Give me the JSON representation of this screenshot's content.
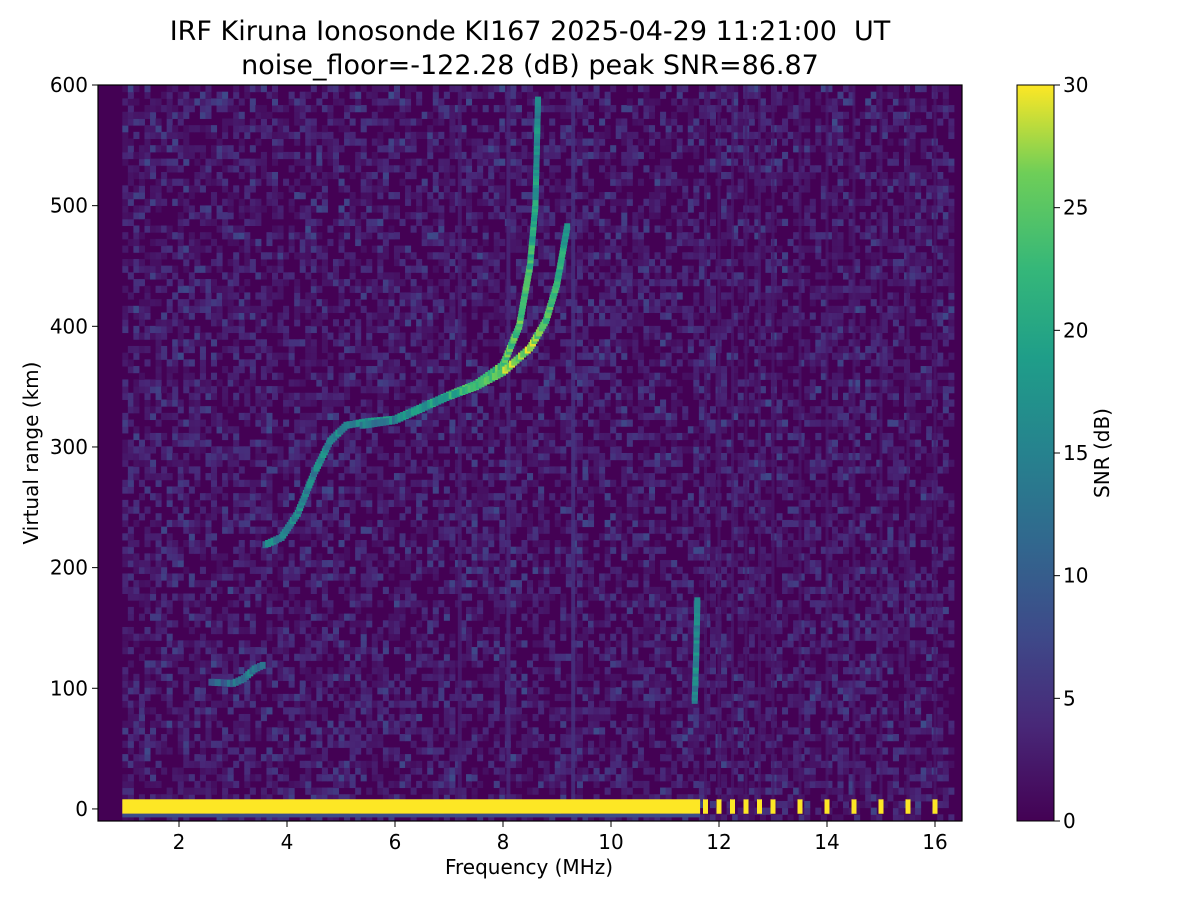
{
  "chart_data": {
    "type": "heatmap",
    "title": "IRF Kiruna Ionosonde KI167 2025-04-29 11:21:00  UT",
    "subtitle": "noise_floor=-122.28 (dB) peak SNR=86.87",
    "xlabel": "Frequency (MHz)",
    "ylabel": "Virtual range (km)",
    "xlim": [
      0.5,
      16.5
    ],
    "ylim": [
      -10,
      600
    ],
    "xticks": [
      2,
      4,
      6,
      8,
      10,
      12,
      14,
      16
    ],
    "yticks": [
      0,
      100,
      200,
      300,
      400,
      500,
      600
    ],
    "colorbar": {
      "label": "SNR (dB)",
      "range": [
        0,
        30
      ],
      "ticks": [
        0,
        5,
        10,
        15,
        20,
        25,
        30
      ],
      "colormap": "viridis"
    },
    "frequency_coverage_mhz": [
      0.95,
      16.35
    ],
    "sounding_frequencies_mhz_above_11_7": [
      11.75,
      12.0,
      12.25,
      12.5,
      12.75,
      13.0,
      13.5,
      14.0,
      14.5,
      15.0,
      15.5,
      16.0
    ],
    "ground_echo": {
      "range_km": 2,
      "snr_db": 30
    },
    "traces": [
      {
        "name_visible": false,
        "kind": "E layer",
        "points": [
          [
            2.6,
            105,
            9
          ],
          [
            3.0,
            104,
            12
          ],
          [
            3.2,
            108,
            14
          ],
          [
            3.4,
            116,
            14
          ],
          [
            3.6,
            120,
            12
          ]
        ]
      },
      {
        "name_visible": false,
        "kind": "F layer",
        "points": [
          [
            3.6,
            219,
            14
          ],
          [
            3.9,
            225,
            16
          ],
          [
            4.2,
            245,
            16
          ],
          [
            4.5,
            278,
            15
          ],
          [
            4.8,
            305,
            16
          ],
          [
            5.1,
            318,
            15
          ],
          [
            5.5,
            321,
            18
          ],
          [
            6.0,
            323,
            17
          ],
          [
            6.5,
            333,
            18
          ],
          [
            7.0,
            343,
            21
          ],
          [
            7.5,
            352,
            23
          ],
          [
            8.0,
            368,
            24
          ],
          [
            8.3,
            400,
            24
          ],
          [
            8.5,
            450,
            22
          ],
          [
            8.6,
            500,
            19
          ],
          [
            8.65,
            590,
            15
          ]
        ]
      },
      {
        "name_visible": false,
        "kind": "F layer",
        "points": [
          [
            5.4,
            318,
            14
          ],
          [
            6.0,
            322,
            15
          ],
          [
            6.5,
            332,
            17
          ],
          [
            7.0,
            342,
            20
          ],
          [
            7.5,
            350,
            22
          ],
          [
            8.0,
            362,
            26
          ],
          [
            8.5,
            382,
            27
          ],
          [
            8.8,
            405,
            24
          ],
          [
            9.0,
            435,
            22
          ],
          [
            9.2,
            485,
            18
          ]
        ]
      },
      {
        "name_visible": false,
        "kind": "E layer",
        "points": [
          [
            11.55,
            90,
            15
          ],
          [
            11.58,
            130,
            16
          ],
          [
            11.6,
            175,
            14
          ]
        ]
      }
    ],
    "noise_streaks_mhz": [
      {
        "f": 9.3,
        "snr_db": 5
      },
      {
        "f": 8.1,
        "snr_db": 4
      },
      {
        "f": 7.2,
        "snr_db": 3
      }
    ]
  }
}
